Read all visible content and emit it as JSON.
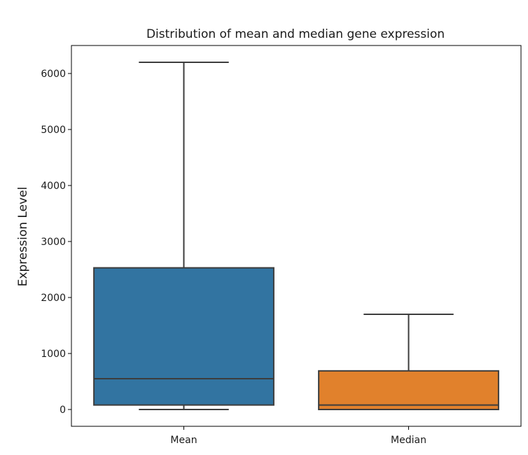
{
  "chart_data": {
    "type": "box",
    "title": "Distribution of mean and median gene expression",
    "xlabel": "",
    "ylabel": "Expression Level",
    "ylim": [
      -300,
      6500
    ],
    "yticks": [
      0,
      1000,
      2000,
      3000,
      4000,
      5000,
      6000
    ],
    "grid": false,
    "categories": [
      "Mean",
      "Median"
    ],
    "boxes": [
      {
        "category": "Mean",
        "whisker_low": 0,
        "q1": 80,
        "median": 550,
        "q3": 2530,
        "whisker_high": 6200,
        "color": "#3274a1"
      },
      {
        "category": "Median",
        "whisker_low": 0,
        "q1": 0,
        "median": 80,
        "q3": 690,
        "whisker_high": 1700,
        "color": "#e1812c"
      }
    ],
    "line_color": "#3d3d3d"
  }
}
